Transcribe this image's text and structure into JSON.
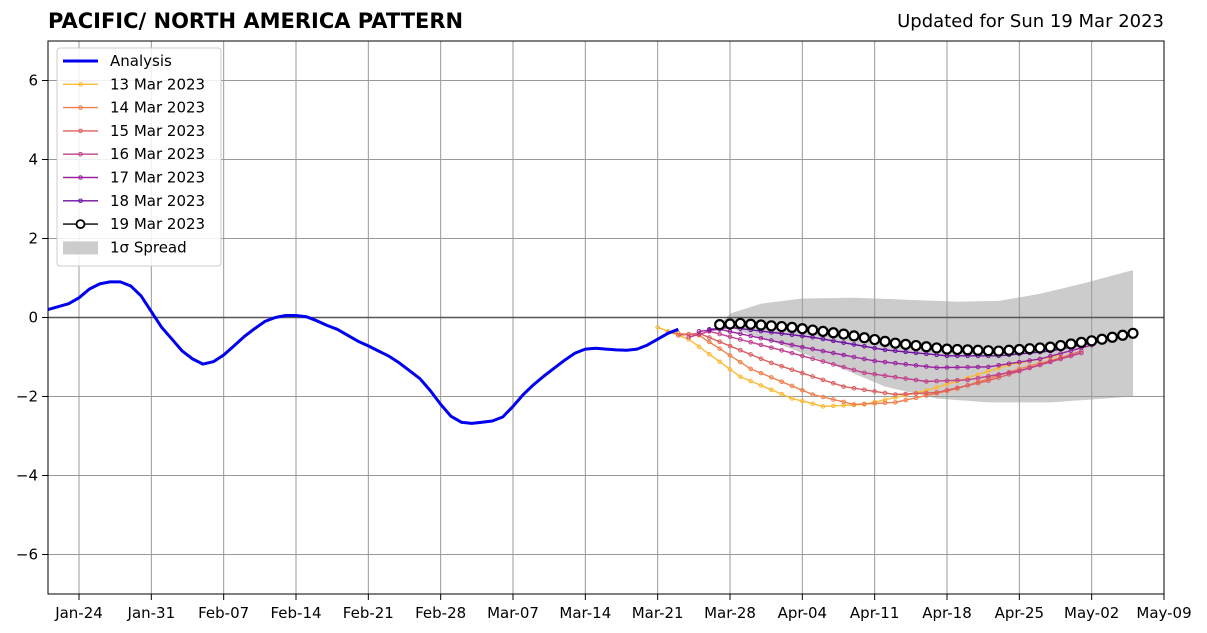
{
  "title": "PACIFIC/ NORTH AMERICA PATTERN",
  "updated": "Updated for Sun 19 Mar 2023",
  "chart_data": {
    "type": "line",
    "x_start": "2023-01-21",
    "xlim": [
      "2023-01-21",
      "2023-05-09"
    ],
    "ylim": [
      -7,
      7
    ],
    "grid": true,
    "legend_position": "top-left",
    "x_tick_labels": [
      "Jan-24",
      "Jan-31",
      "Feb-07",
      "Feb-14",
      "Feb-21",
      "Feb-28",
      "Mar-07",
      "Mar-14",
      "Mar-21",
      "Mar-28",
      "Apr-04",
      "Apr-11",
      "Apr-18",
      "Apr-25",
      "May-02",
      "May-09"
    ],
    "y_ticks": [
      -6,
      -4,
      -2,
      0,
      2,
      4,
      6
    ],
    "y_tick_labels": [
      "−6",
      "−4",
      "−2",
      "0",
      "2",
      "4",
      "6"
    ],
    "analysis": {
      "name": "Analysis",
      "color": "#0000ee",
      "points": [
        [
          "2023-01-21",
          0.2
        ],
        [
          "2023-01-23",
          0.35
        ],
        [
          "2023-01-24",
          0.5
        ],
        [
          "2023-01-25",
          0.72
        ],
        [
          "2023-01-26",
          0.85
        ],
        [
          "2023-01-27",
          0.9
        ],
        [
          "2023-01-28",
          0.9
        ],
        [
          "2023-01-29",
          0.8
        ],
        [
          "2023-01-30",
          0.55
        ],
        [
          "2023-01-31",
          0.15
        ],
        [
          "2023-02-01",
          -0.25
        ],
        [
          "2023-02-02",
          -0.55
        ],
        [
          "2023-02-03",
          -0.85
        ],
        [
          "2023-02-04",
          -1.05
        ],
        [
          "2023-02-05",
          -1.18
        ],
        [
          "2023-02-06",
          -1.12
        ],
        [
          "2023-02-07",
          -0.95
        ],
        [
          "2023-02-08",
          -0.72
        ],
        [
          "2023-02-09",
          -0.48
        ],
        [
          "2023-02-10",
          -0.28
        ],
        [
          "2023-02-11",
          -0.1
        ],
        [
          "2023-02-12",
          0.0
        ],
        [
          "2023-02-13",
          0.05
        ],
        [
          "2023-02-14",
          0.05
        ],
        [
          "2023-02-15",
          0.02
        ],
        [
          "2023-02-16",
          -0.08
        ],
        [
          "2023-02-17",
          -0.2
        ],
        [
          "2023-02-18",
          -0.3
        ],
        [
          "2023-02-19",
          -0.45
        ],
        [
          "2023-02-20",
          -0.6
        ],
        [
          "2023-02-21",
          -0.72
        ],
        [
          "2023-02-22",
          -0.85
        ],
        [
          "2023-02-23",
          -0.98
        ],
        [
          "2023-02-24",
          -1.15
        ],
        [
          "2023-02-25",
          -1.35
        ],
        [
          "2023-02-26",
          -1.55
        ],
        [
          "2023-02-27",
          -1.85
        ],
        [
          "2023-02-28",
          -2.2
        ],
        [
          "2023-03-01",
          -2.5
        ],
        [
          "2023-03-02",
          -2.65
        ],
        [
          "2023-03-03",
          -2.68
        ],
        [
          "2023-03-04",
          -2.65
        ],
        [
          "2023-03-05",
          -2.62
        ],
        [
          "2023-03-06",
          -2.52
        ],
        [
          "2023-03-07",
          -2.25
        ],
        [
          "2023-03-08",
          -1.95
        ],
        [
          "2023-03-09",
          -1.7
        ],
        [
          "2023-03-10",
          -1.48
        ],
        [
          "2023-03-11",
          -1.28
        ],
        [
          "2023-03-12",
          -1.08
        ],
        [
          "2023-03-13",
          -0.9
        ],
        [
          "2023-03-14",
          -0.8
        ],
        [
          "2023-03-15",
          -0.78
        ],
        [
          "2023-03-16",
          -0.8
        ],
        [
          "2023-03-17",
          -0.82
        ],
        [
          "2023-03-18",
          -0.83
        ],
        [
          "2023-03-19",
          -0.8
        ],
        [
          "2023-03-20",
          -0.7
        ],
        [
          "2023-03-21",
          -0.55
        ],
        [
          "2023-03-22",
          -0.4
        ],
        [
          "2023-03-23",
          -0.3
        ]
      ]
    },
    "forecast_series": [
      {
        "name": "13 Mar 2023",
        "color": "#fcb933",
        "points": [
          [
            "2023-03-21",
            -0.25
          ],
          [
            "2023-03-24",
            -0.55
          ],
          [
            "2023-03-29",
            -1.5
          ],
          [
            "2023-04-03",
            -2.05
          ],
          [
            "2023-04-06",
            -2.25
          ],
          [
            "2023-04-10",
            -2.2
          ],
          [
            "2023-04-16",
            -1.85
          ],
          [
            "2023-04-24",
            -1.2
          ],
          [
            "2023-04-29",
            -0.95
          ]
        ]
      },
      {
        "name": "14 Mar 2023",
        "color": "#f07f4b",
        "points": [
          [
            "2023-03-22",
            -0.38
          ],
          [
            "2023-03-25",
            -0.45
          ],
          [
            "2023-03-30",
            -1.3
          ],
          [
            "2023-04-05",
            -1.95
          ],
          [
            "2023-04-09",
            -2.2
          ],
          [
            "2023-04-13",
            -2.15
          ],
          [
            "2023-04-19",
            -1.8
          ],
          [
            "2023-04-25",
            -1.3
          ],
          [
            "2023-04-30",
            -0.95
          ]
        ]
      },
      {
        "name": "15 Mar 2023",
        "color": "#dd5f5f",
        "points": [
          [
            "2023-03-23",
            -0.45
          ],
          [
            "2023-03-25",
            -0.4
          ],
          [
            "2023-04-01",
            -1.15
          ],
          [
            "2023-04-08",
            -1.75
          ],
          [
            "2023-04-13",
            -1.95
          ],
          [
            "2023-04-17",
            -1.9
          ],
          [
            "2023-04-22",
            -1.6
          ],
          [
            "2023-04-27",
            -1.2
          ],
          [
            "2023-05-01",
            -0.85
          ]
        ]
      },
      {
        "name": "16 Mar 2023",
        "color": "#c1408c",
        "points": [
          [
            "2023-03-24",
            -0.5
          ],
          [
            "2023-03-26",
            -0.35
          ],
          [
            "2023-04-03",
            -0.9
          ],
          [
            "2023-04-10",
            -1.4
          ],
          [
            "2023-04-16",
            -1.62
          ],
          [
            "2023-04-20",
            -1.58
          ],
          [
            "2023-04-25",
            -1.35
          ],
          [
            "2023-05-01",
            -0.9
          ]
        ]
      },
      {
        "name": "17 Mar 2023",
        "color": "#9b23a0",
        "points": [
          [
            "2023-03-25",
            -0.35
          ],
          [
            "2023-03-27",
            -0.3
          ],
          [
            "2023-04-04",
            -0.75
          ],
          [
            "2023-04-11",
            -1.1
          ],
          [
            "2023-04-17",
            -1.27
          ],
          [
            "2023-04-22",
            -1.25
          ],
          [
            "2023-04-27",
            -1.05
          ],
          [
            "2023-05-02",
            -0.7
          ]
        ]
      },
      {
        "name": "18 Mar 2023",
        "color": "#6b0fa0",
        "points": [
          [
            "2023-03-26",
            -0.3
          ],
          [
            "2023-03-28",
            -0.25
          ],
          [
            "2023-04-05",
            -0.5
          ],
          [
            "2023-04-12",
            -0.82
          ],
          [
            "2023-04-18",
            -0.97
          ],
          [
            "2023-04-23",
            -0.97
          ],
          [
            "2023-04-28",
            -0.85
          ],
          [
            "2023-05-03",
            -0.6
          ]
        ]
      },
      {
        "name": "19 Mar 2023",
        "color": "#000000",
        "open_markers": true,
        "points": [
          [
            "2023-03-27",
            -0.18
          ],
          [
            "2023-03-29",
            -0.15
          ],
          [
            "2023-04-03",
            -0.25
          ],
          [
            "2023-04-08",
            -0.42
          ],
          [
            "2023-04-13",
            -0.65
          ],
          [
            "2023-04-18",
            -0.8
          ],
          [
            "2023-04-23",
            -0.85
          ],
          [
            "2023-04-28",
            -0.75
          ],
          [
            "2023-05-03",
            -0.55
          ],
          [
            "2023-05-06",
            -0.4
          ]
        ]
      }
    ],
    "spread": {
      "name": "1σ Spread",
      "color": "#cccccc",
      "upper": [
        [
          "2023-03-27",
          -0.18
        ],
        [
          "2023-03-28",
          0.1
        ],
        [
          "2023-03-31",
          0.35
        ],
        [
          "2023-04-04",
          0.48
        ],
        [
          "2023-04-09",
          0.5
        ],
        [
          "2023-04-14",
          0.45
        ],
        [
          "2023-04-19",
          0.4
        ],
        [
          "2023-04-23",
          0.42
        ],
        [
          "2023-04-27",
          0.6
        ],
        [
          "2023-05-01",
          0.85
        ],
        [
          "2023-05-06",
          1.2
        ]
      ],
      "lower": [
        [
          "2023-03-27",
          -0.18
        ],
        [
          "2023-04-01",
          -0.6
        ],
        [
          "2023-04-07",
          -1.2
        ],
        [
          "2023-04-12",
          -1.75
        ],
        [
          "2023-04-17",
          -2.05
        ],
        [
          "2023-04-22",
          -2.15
        ],
        [
          "2023-04-28",
          -2.15
        ],
        [
          "2023-05-06",
          -2.0
        ]
      ]
    }
  }
}
